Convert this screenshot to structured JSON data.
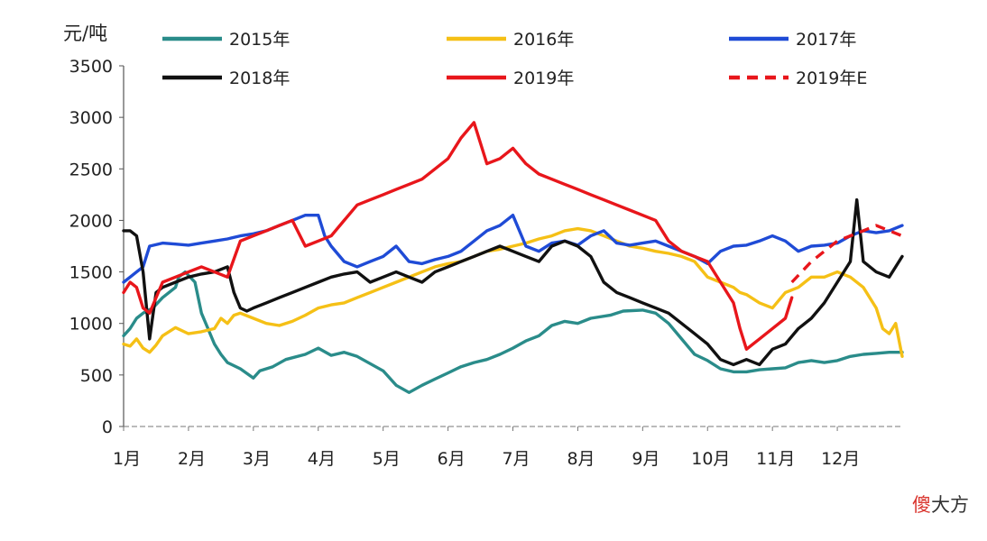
{
  "chart_data": {
    "type": "line",
    "ylabel": "元/吨",
    "ylim": [
      0,
      3500
    ],
    "yticks": [
      "3500",
      "3000",
      "2500",
      "2000",
      "1500",
      "1000",
      "500",
      "0"
    ],
    "categories": [
      "1月",
      "2月",
      "3月",
      "4月",
      "5月",
      "6月",
      "7月",
      "8月",
      "9月",
      "10月",
      "11月",
      "12月"
    ],
    "legend_position": "top",
    "grid": false,
    "series": [
      {
        "name": "2015年",
        "color": "#2a8c8a",
        "dash": false,
        "x": [
          0.0,
          0.1,
          0.2,
          0.3,
          0.45,
          0.6,
          0.8,
          0.85,
          0.95,
          1.1,
          1.2,
          1.3,
          1.4,
          1.5,
          1.6,
          1.8,
          2.0,
          2.1,
          2.3,
          2.5,
          2.8,
          3.0,
          3.2,
          3.4,
          3.6,
          3.8,
          4.0,
          4.2,
          4.4,
          4.6,
          4.8,
          5.0,
          5.2,
          5.4,
          5.6,
          5.8,
          6.0,
          6.2,
          6.4,
          6.6,
          6.8,
          7.0,
          7.2,
          7.5,
          7.7,
          8.0,
          8.2,
          8.4,
          8.6,
          8.8,
          9.0,
          9.2,
          9.4,
          9.6,
          9.8,
          10.0,
          10.2,
          10.4,
          10.6,
          10.8,
          11.0,
          11.2,
          11.4,
          11.6,
          11.8,
          12.0
        ],
        "y": [
          880,
          950,
          1050,
          1100,
          1150,
          1250,
          1350,
          1450,
          1500,
          1400,
          1100,
          950,
          800,
          700,
          620,
          560,
          470,
          540,
          580,
          650,
          700,
          760,
          690,
          720,
          680,
          610,
          540,
          400,
          330,
          400,
          460,
          520,
          580,
          620,
          650,
          700,
          760,
          830,
          880,
          980,
          1020,
          1000,
          1050,
          1080,
          1120,
          1130,
          1100,
          1000,
          850,
          700,
          640,
          560,
          530,
          530,
          550,
          560,
          570,
          620,
          640,
          620,
          640,
          680,
          700,
          710,
          720,
          720
        ]
      },
      {
        "name": "2016年",
        "color": "#f5c016",
        "dash": false,
        "x": [
          0.0,
          0.1,
          0.2,
          0.3,
          0.4,
          0.5,
          0.6,
          0.8,
          1.0,
          1.2,
          1.4,
          1.5,
          1.6,
          1.7,
          1.8,
          2.0,
          2.2,
          2.4,
          2.6,
          2.8,
          3.0,
          3.2,
          3.4,
          3.6,
          3.8,
          4.0,
          4.2,
          4.4,
          4.6,
          4.8,
          5.0,
          5.2,
          5.4,
          5.6,
          5.8,
          6.0,
          6.2,
          6.4,
          6.6,
          6.8,
          7.0,
          7.2,
          7.4,
          7.6,
          7.8,
          8.0,
          8.2,
          8.4,
          8.6,
          8.8,
          9.0,
          9.2,
          9.4,
          9.5,
          9.6,
          9.8,
          10.0,
          10.2,
          10.4,
          10.6,
          10.8,
          11.0,
          11.2,
          11.4,
          11.6,
          11.7,
          11.8,
          11.9,
          12.0
        ],
        "y": [
          800,
          780,
          850,
          760,
          720,
          790,
          880,
          960,
          900,
          920,
          950,
          1050,
          1000,
          1080,
          1100,
          1050,
          1000,
          980,
          1020,
          1080,
          1150,
          1180,
          1200,
          1250,
          1300,
          1350,
          1400,
          1450,
          1500,
          1550,
          1580,
          1600,
          1650,
          1700,
          1720,
          1750,
          1780,
          1820,
          1850,
          1900,
          1920,
          1900,
          1850,
          1800,
          1750,
          1730,
          1700,
          1680,
          1650,
          1600,
          1450,
          1400,
          1350,
          1300,
          1280,
          1200,
          1150,
          1300,
          1350,
          1450,
          1450,
          1500,
          1450,
          1350,
          1150,
          950,
          900,
          1000,
          680
        ]
      },
      {
        "name": "2017年",
        "color": "#1f4bd6",
        "dash": false,
        "x": [
          0.0,
          0.1,
          0.2,
          0.3,
          0.4,
          0.6,
          0.8,
          1.0,
          1.2,
          1.4,
          1.6,
          1.8,
          2.0,
          2.2,
          2.4,
          2.6,
          2.8,
          3.0,
          3.1,
          3.2,
          3.4,
          3.6,
          3.8,
          4.0,
          4.2,
          4.4,
          4.6,
          4.8,
          5.0,
          5.2,
          5.4,
          5.6,
          5.8,
          6.0,
          6.2,
          6.4,
          6.6,
          6.8,
          7.0,
          7.2,
          7.4,
          7.6,
          7.8,
          8.0,
          8.2,
          8.4,
          8.6,
          8.8,
          9.0,
          9.2,
          9.4,
          9.6,
          9.8,
          10.0,
          10.2,
          10.4,
          10.6,
          10.8,
          11.0,
          11.2,
          11.4,
          11.6,
          11.8,
          12.0
        ],
        "y": [
          1400,
          1450,
          1500,
          1550,
          1750,
          1780,
          1770,
          1760,
          1780,
          1800,
          1820,
          1850,
          1870,
          1900,
          1950,
          2000,
          2050,
          2050,
          1850,
          1750,
          1600,
          1550,
          1600,
          1650,
          1750,
          1600,
          1580,
          1620,
          1650,
          1700,
          1800,
          1900,
          1950,
          2050,
          1750,
          1700,
          1780,
          1800,
          1760,
          1850,
          1900,
          1780,
          1760,
          1780,
          1800,
          1750,
          1700,
          1650,
          1580,
          1700,
          1750,
          1760,
          1800,
          1850,
          1800,
          1700,
          1750,
          1760,
          1780,
          1850,
          1900,
          1880,
          1900,
          1950
        ]
      },
      {
        "name": "2018年",
        "color": "#111111",
        "dash": false,
        "x": [
          0.0,
          0.1,
          0.2,
          0.3,
          0.4,
          0.5,
          0.6,
          0.8,
          1.0,
          1.2,
          1.4,
          1.6,
          1.7,
          1.8,
          1.9,
          2.0,
          2.2,
          2.4,
          2.6,
          2.8,
          3.0,
          3.2,
          3.4,
          3.6,
          3.8,
          4.0,
          4.2,
          4.4,
          4.6,
          4.8,
          5.0,
          5.2,
          5.4,
          5.6,
          5.8,
          6.0,
          6.2,
          6.4,
          6.6,
          6.8,
          7.0,
          7.2,
          7.4,
          7.6,
          7.8,
          8.0,
          8.2,
          8.4,
          8.6,
          8.8,
          9.0,
          9.2,
          9.4,
          9.6,
          9.8,
          10.0,
          10.2,
          10.4,
          10.6,
          10.8,
          11.0,
          11.2,
          11.3,
          11.4,
          11.6,
          11.8,
          11.9,
          12.0
        ],
        "y": [
          1900,
          1900,
          1850,
          1500,
          850,
          1300,
          1350,
          1400,
          1450,
          1480,
          1500,
          1550,
          1300,
          1150,
          1120,
          1150,
          1200,
          1250,
          1300,
          1350,
          1400,
          1450,
          1480,
          1500,
          1400,
          1450,
          1500,
          1450,
          1400,
          1500,
          1550,
          1600,
          1650,
          1700,
          1750,
          1700,
          1650,
          1600,
          1750,
          1800,
          1750,
          1650,
          1400,
          1300,
          1250,
          1200,
          1150,
          1100,
          1000,
          900,
          800,
          650,
          600,
          650,
          600,
          750,
          800,
          950,
          1050,
          1200,
          1400,
          1600,
          2200,
          1600,
          1500,
          1450,
          1550,
          1650
        ]
      },
      {
        "name": "2019年",
        "color": "#e8161b",
        "dash": false,
        "x": [
          0.0,
          0.1,
          0.2,
          0.3,
          0.4,
          0.5,
          0.6,
          0.8,
          1.0,
          1.2,
          1.4,
          1.6,
          1.8,
          2.0,
          2.2,
          2.4,
          2.6,
          2.8,
          3.0,
          3.2,
          3.4,
          3.6,
          3.8,
          4.0,
          4.2,
          4.4,
          4.6,
          4.8,
          5.0,
          5.2,
          5.4,
          5.6,
          5.8,
          6.0,
          6.2,
          6.4,
          6.6,
          6.8,
          7.0,
          7.2,
          7.4,
          7.6,
          7.8,
          8.0,
          8.2,
          8.4,
          8.6,
          8.8,
          9.0,
          9.2,
          9.4,
          9.5,
          9.6,
          9.8,
          10.0,
          10.2,
          10.3
        ],
        "y": [
          1300,
          1400,
          1350,
          1150,
          1100,
          1250,
          1400,
          1450,
          1500,
          1550,
          1500,
          1450,
          1800,
          1850,
          1900,
          1950,
          2000,
          1750,
          1800,
          1850,
          2000,
          2150,
          2200,
          2250,
          2300,
          2350,
          2400,
          2500,
          2600,
          2800,
          2950,
          2550,
          2600,
          2700,
          2550,
          2450,
          2400,
          2350,
          2300,
          2250,
          2200,
          2150,
          2100,
          2050,
          2000,
          1800,
          1700,
          1650,
          1600,
          1400,
          1200,
          950,
          750,
          850,
          950,
          1050,
          1250
        ]
      },
      {
        "name": "2019年E",
        "color": "#e8161b",
        "dash": true,
        "x": [
          10.3,
          10.6,
          11.0,
          11.4,
          11.6,
          11.8,
          12.0
        ],
        "y": [
          1400,
          1600,
          1800,
          1900,
          1950,
          1900,
          1850
        ]
      }
    ]
  },
  "watermark": {
    "first": "傻",
    "rest": "大方"
  }
}
